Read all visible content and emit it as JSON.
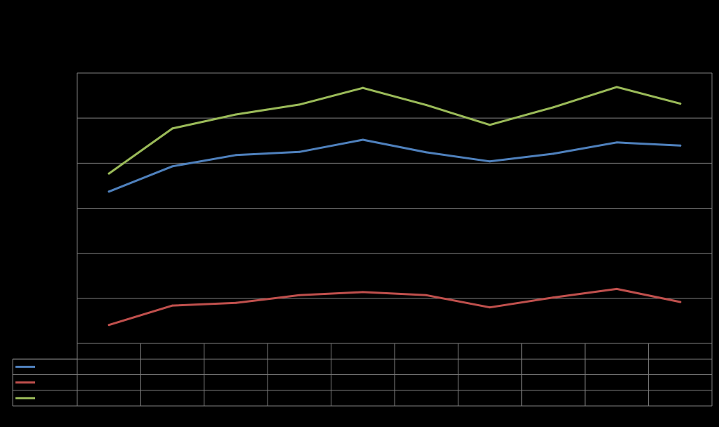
{
  "chart_data": {
    "type": "line",
    "title": "",
    "xlabel": "",
    "ylabel": "",
    "ylim": [
      0,
      6
    ],
    "grid": true,
    "legend": "data-table",
    "categories": [
      "",
      "",
      "",
      "",
      "",
      "",
      "",
      "",
      "",
      ""
    ],
    "series": [
      {
        "color": "#4F81BD",
        "values": [
          3.37,
          3.93,
          4.18,
          4.25,
          4.52,
          4.24,
          4.04,
          4.21,
          4.46,
          4.39
        ]
      },
      {
        "color": "#C0504D",
        "values": [
          0.41,
          0.84,
          0.9,
          1.07,
          1.14,
          1.07,
          0.8,
          1.02,
          1.21,
          0.92
        ]
      },
      {
        "color": "#9BBB59",
        "values": [
          3.77,
          4.77,
          5.08,
          5.3,
          5.67,
          5.29,
          4.85,
          5.24,
          5.69,
          5.32
        ]
      }
    ]
  }
}
